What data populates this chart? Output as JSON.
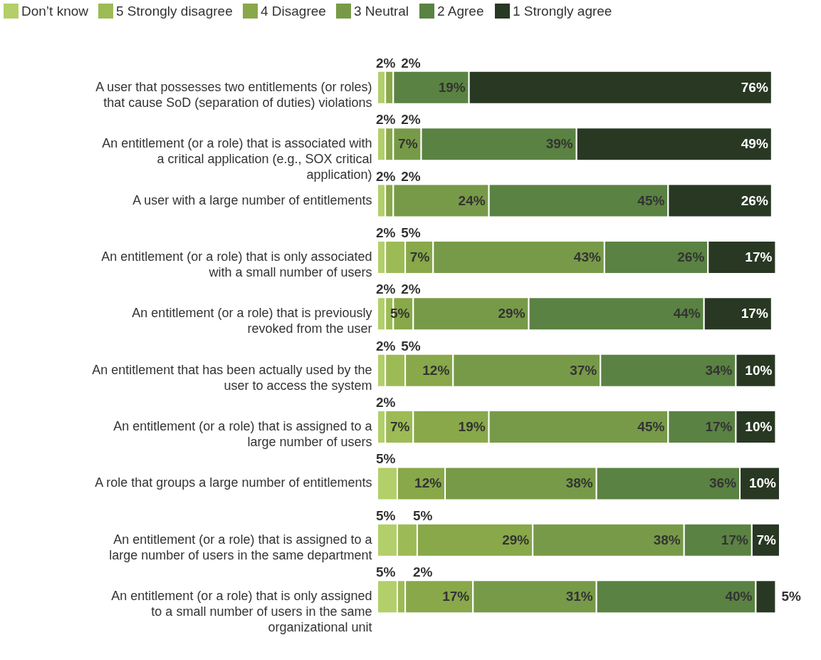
{
  "chart_data": {
    "type": "bar",
    "orientation": "horizontal",
    "stacked": true,
    "legend": "top",
    "grid": false,
    "categories": [
      "A user that possesses two entitlements (or roles) that cause SoD (separation of duties) violations",
      "An entitlement (or a role) that is associated with a critical application (e.g., SOX critical application)",
      "A user with a large number of entitlements",
      "An entitlement (or a role) that is only associated with a small number of users",
      "An entitlement (or a role) that is previously revoked from the user",
      "An entitlement that has been actually used by the user to access the system",
      "An entitlement (or a role) that is assigned to a large number of users",
      "A role that groups a large number of entitlements",
      "An entitlement (or a role) that is assigned to a large number of users in the same department",
      "An entitlement (or a role) that is only assigned to a small number of users in the same organizational unit"
    ],
    "series": [
      {
        "name": "Don’t know",
        "color": "#b2cf6a",
        "values": [
          2,
          2,
          2,
          2,
          2,
          2,
          2,
          5,
          5,
          5
        ],
        "value_labels": [
          "2%",
          "2%",
          "2%",
          "2%",
          "2%",
          "2%",
          "2%",
          "5%",
          "5%",
          "5%"
        ]
      },
      {
        "name": "5 Strongly disagree",
        "color": "#9cbb55",
        "values": [
          null,
          null,
          null,
          5,
          2,
          5,
          7,
          null,
          5,
          2
        ],
        "value_labels": [
          null,
          null,
          null,
          "5%",
          "2%",
          "5%",
          "7%",
          null,
          "5%",
          "2%"
        ]
      },
      {
        "name": "4 Disagree",
        "color": "#88a84a",
        "values": [
          2,
          2,
          2,
          7,
          5,
          12,
          19,
          12,
          29,
          17
        ],
        "value_labels": [
          "2%",
          "2%",
          "2%",
          "7%",
          "5%",
          "12%",
          "19%",
          "12%",
          "29%",
          "17%"
        ]
      },
      {
        "name": "3 Neutral",
        "color": "#779a48",
        "values": [
          null,
          7,
          24,
          43,
          29,
          37,
          45,
          38,
          38,
          31
        ],
        "value_labels": [
          null,
          "7%",
          "24%",
          "43%",
          "29%",
          "37%",
          "45%",
          "38%",
          "38%",
          "31%"
        ]
      },
      {
        "name": "2 Agree",
        "color": "#5a8242",
        "values": [
          19,
          39,
          45,
          26,
          44,
          34,
          17,
          36,
          17,
          40
        ],
        "value_labels": [
          "19%",
          "39%",
          "45%",
          "26%",
          "44%",
          "34%",
          "17%",
          "36%",
          "17%",
          "40%"
        ]
      },
      {
        "name": "1 Strongly agree",
        "color": "#283823",
        "values": [
          76,
          49,
          26,
          17,
          17,
          10,
          10,
          10,
          7,
          5
        ],
        "value_labels": [
          "76%",
          "49%",
          "26%",
          "17%",
          "17%",
          "10%",
          "10%",
          "10%",
          "7%",
          "5%"
        ]
      }
    ]
  }
}
